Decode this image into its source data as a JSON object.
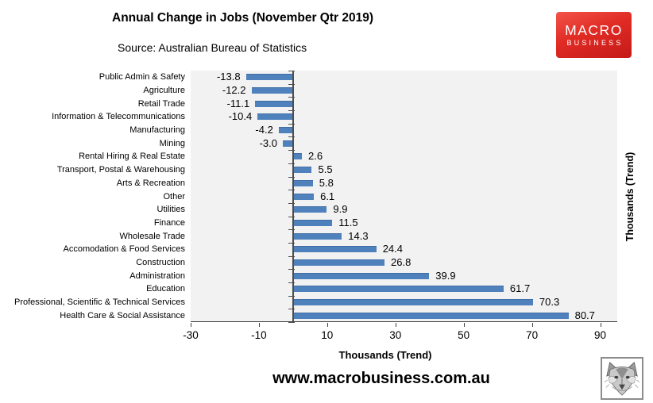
{
  "header": {
    "title": "Annual Change in Jobs (November Qtr 2019)",
    "source": "Source: Australian Bureau of Statistics"
  },
  "branding": {
    "logo_line1": "MACRO",
    "logo_line2": "BUSINESS",
    "logo_bg_color": "#E02B24",
    "fox_logo_icon": "fox-sketch-icon"
  },
  "footer": {
    "website": "www.macrobusiness.com.au"
  },
  "chart_data": {
    "type": "bar",
    "orientation": "horizontal",
    "title": "Annual Change in Jobs (November Qtr 2019)",
    "subtitle": "Source: Australian Bureau of Statistics",
    "categories": [
      "Public Admin & Safety",
      "Agriculture",
      "Retail Trade",
      "Information & Telecommunications",
      "Manufacturing",
      "Mining",
      "Rental Hiring & Real Estate",
      "Transport, Postal & Warehousing",
      "Arts & Recreation",
      "Other",
      "Utilities",
      "Finance",
      "Wholesale Trade",
      "Accomodation & Food Services",
      "Construction",
      "Administration",
      "Education",
      "Professional, Scientific & Technical Services",
      "Health Care & Social Assistance"
    ],
    "values": [
      -13.8,
      -12.2,
      -11.1,
      -10.4,
      -4.2,
      -3.0,
      2.6,
      5.5,
      5.8,
      6.1,
      9.9,
      11.5,
      14.3,
      24.4,
      26.8,
      39.9,
      61.7,
      70.3,
      80.7
    ],
    "xlabel": "Thousands (Trend)",
    "right_axis_label": "Thousands (Trend)",
    "x_ticks": [
      -30,
      -10,
      10,
      30,
      50,
      70,
      90
    ],
    "xlim": [
      -30,
      95
    ],
    "grid": false,
    "legend": false,
    "bar_color": "#4F81BD",
    "plot_bg_color": "#F2F2F2",
    "axis_color": "#404040"
  }
}
